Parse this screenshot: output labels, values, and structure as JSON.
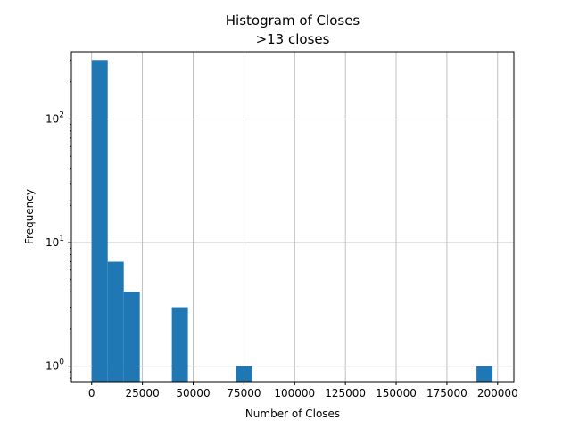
{
  "chart_data": {
    "type": "bar",
    "title": "Histogram of Closes",
    "subtitle": ">13 closes",
    "xlabel": "Number of Closes",
    "ylabel": "Frequency",
    "yscale": "log",
    "grid": true,
    "xlim": [
      -10000,
      208000
    ],
    "ylim": [
      0.75,
      350
    ],
    "bin_width": 7900,
    "bins": [
      {
        "start": 0,
        "count": 300
      },
      {
        "start": 7900,
        "count": 7
      },
      {
        "start": 15800,
        "count": 4
      },
      {
        "start": 39500,
        "count": 3
      },
      {
        "start": 71100,
        "count": 1
      },
      {
        "start": 189600,
        "count": 1
      }
    ],
    "x_ticks": [
      {
        "value": 0,
        "label": "0"
      },
      {
        "value": 25000,
        "label": "25000"
      },
      {
        "value": 50000,
        "label": "50000"
      },
      {
        "value": 75000,
        "label": "75000"
      },
      {
        "value": 100000,
        "label": "100000"
      },
      {
        "value": 125000,
        "label": "125000"
      },
      {
        "value": 150000,
        "label": "150000"
      },
      {
        "value": 175000,
        "label": "175000"
      },
      {
        "value": 200000,
        "label": "200000"
      }
    ],
    "y_ticks": [
      {
        "value": 1,
        "base": "10",
        "exp": "0"
      },
      {
        "value": 10,
        "base": "10",
        "exp": "1"
      },
      {
        "value": 100,
        "base": "10",
        "exp": "2"
      }
    ],
    "bar_color": "#1f77b4"
  }
}
